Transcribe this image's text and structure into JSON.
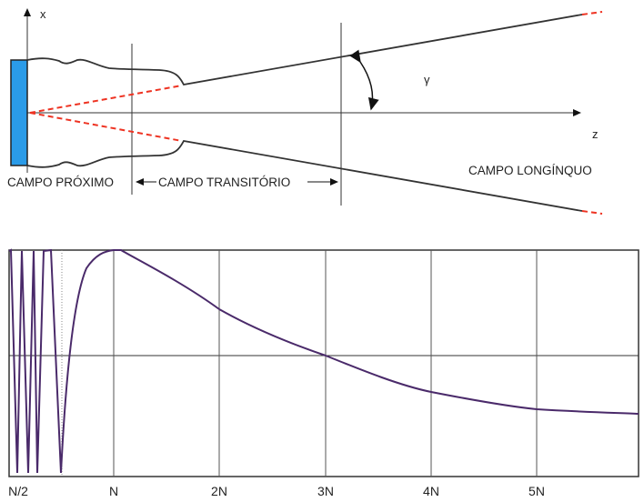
{
  "top": {
    "axis_x_label": "x",
    "axis_z_label": "z",
    "angle_label": "γ",
    "near_field": "CAMPO PRÓXIMO",
    "transition_field": "CAMPO TRANSITÓRIO",
    "far_field": "CAMPO LONGÍNQUO"
  },
  "bottom": {
    "tick_labels": [
      "N/2",
      "N",
      "2N",
      "3N",
      "4N",
      "5N"
    ]
  },
  "colors": {
    "transducer": "#2a9be8",
    "dash": "#ee3322",
    "curve": "#4a2a6a"
  }
}
